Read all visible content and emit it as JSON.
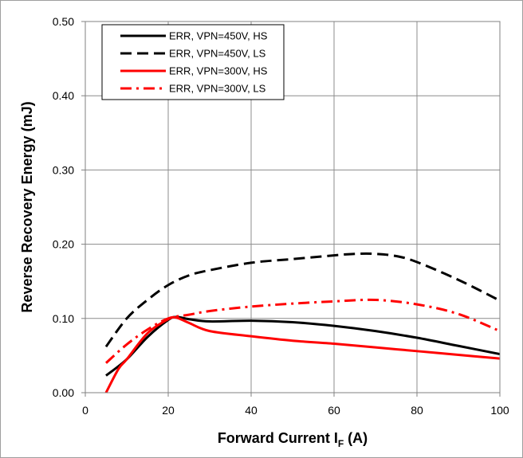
{
  "chart_data": {
    "type": "line",
    "xlabel": "Forward Current I",
    "xlabel_subscript": "F",
    "xlabel_unit": " (A)",
    "ylabel": "Reverse Recovery Energy (mJ)",
    "xlim": [
      0,
      100
    ],
    "ylim": [
      0,
      0.5
    ],
    "x_ticks": [
      0,
      20,
      40,
      60,
      80,
      100
    ],
    "x_tick_labels": [
      "0",
      "20",
      "40",
      "60",
      "80",
      "100"
    ],
    "y_ticks": [
      0,
      0.1,
      0.2,
      0.3,
      0.4,
      0.5
    ],
    "y_tick_labels": [
      "0.00",
      "0.10",
      "0.20",
      "0.30",
      "0.40",
      "0.50"
    ],
    "grid": true,
    "legend_position": "top-left",
    "series": [
      {
        "name": "ERR, VPN=450V, HS",
        "color": "#000000",
        "dash": "solid",
        "x": [
          5,
          10,
          15,
          20,
          22,
          25,
          30,
          40,
          50,
          60,
          70,
          80,
          90,
          100
        ],
        "y": [
          0.023,
          0.045,
          0.075,
          0.098,
          0.102,
          0.099,
          0.096,
          0.097,
          0.095,
          0.09,
          0.083,
          0.074,
          0.063,
          0.052
        ]
      },
      {
        "name": "ERR, VPN=450V, LS",
        "color": "#000000",
        "dash": "dash",
        "x": [
          5,
          10,
          15,
          20,
          25,
          30,
          40,
          50,
          60,
          65,
          70,
          75,
          80,
          90,
          100
        ],
        "y": [
          0.062,
          0.1,
          0.125,
          0.145,
          0.158,
          0.165,
          0.175,
          0.18,
          0.185,
          0.187,
          0.187,
          0.184,
          0.176,
          0.152,
          0.124
        ]
      },
      {
        "name": "ERR, VPN=300V, HS",
        "color": "#ff0000",
        "dash": "solid",
        "x": [
          5,
          8,
          10,
          15,
          20,
          22,
          25,
          30,
          40,
          50,
          60,
          70,
          80,
          90,
          100
        ],
        "y": [
          0.0,
          0.032,
          0.045,
          0.08,
          0.099,
          0.101,
          0.094,
          0.083,
          0.076,
          0.07,
          0.066,
          0.061,
          0.056,
          0.051,
          0.046
        ]
      },
      {
        "name": "ERR, VPN=300V, LS",
        "color": "#ff0000",
        "dash": "dashdot",
        "x": [
          5,
          10,
          15,
          20,
          25,
          30,
          40,
          50,
          60,
          70,
          80,
          90,
          100
        ],
        "y": [
          0.04,
          0.065,
          0.085,
          0.1,
          0.105,
          0.11,
          0.116,
          0.12,
          0.123,
          0.125,
          0.119,
          0.106,
          0.083
        ]
      }
    ]
  }
}
